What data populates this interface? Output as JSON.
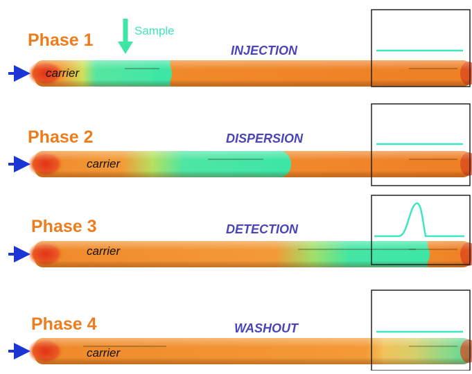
{
  "sample_label": "Sample",
  "carrier_label": "carrier",
  "colors": {
    "phase_label": "#ec7c1c",
    "stage_label": "#4b44b8",
    "carrier_fluid": "#f0892a",
    "sample_fluid": "#3ee6a6",
    "signal": "#3ee6bf",
    "arrow": "#1c36d6",
    "detector_box": "#222222"
  },
  "phases": [
    {
      "label": "Phase 1",
      "stage": "INJECTION",
      "signal": "flat"
    },
    {
      "label": "Phase 2",
      "stage": "DISPERSION",
      "signal": "flat"
    },
    {
      "label": "Phase 3",
      "stage": "DETECTION",
      "signal": "peak"
    },
    {
      "label": "Phase 4",
      "stage": "WASHOUT",
      "signal": "flat"
    }
  ]
}
